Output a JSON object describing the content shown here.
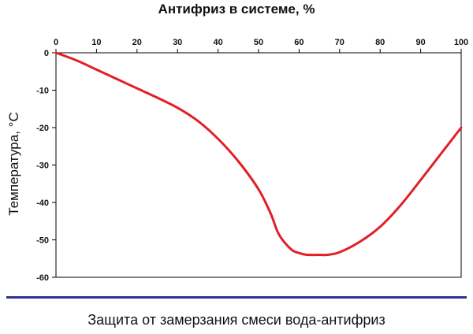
{
  "chart_data": {
    "type": "line",
    "title": "Антифриз в системе, %",
    "ylabel": "Температура, °C",
    "xlabel": "",
    "x_axis_position": "top",
    "xlim": [
      0,
      100
    ],
    "ylim": [
      -60,
      0
    ],
    "x_ticks": [
      "0",
      "10",
      "20",
      "30",
      "40",
      "50",
      "60",
      "70",
      "80",
      "90",
      "100"
    ],
    "y_ticks": [
      "0",
      "-10",
      "-20",
      "-30",
      "-40",
      "-50",
      "-60"
    ],
    "grid": false,
    "series": [
      {
        "color": "#e31e24",
        "x": [
          0,
          5,
          10,
          15,
          20,
          25,
          30,
          35,
          40,
          45,
          50,
          53,
          55,
          58,
          60,
          62,
          65,
          67,
          70,
          75,
          80,
          85,
          90,
          95,
          100
        ],
        "y": [
          0,
          -2,
          -4.5,
          -7,
          -9.5,
          -12,
          -14.7,
          -18.2,
          -23,
          -29,
          -36.5,
          -43,
          -48.5,
          -52.5,
          -53.5,
          -54,
          -54,
          -54,
          -53.3,
          -50.5,
          -46.5,
          -40.8,
          -34,
          -27,
          -20
        ]
      }
    ]
  },
  "caption": "Защита от замерзания смеси вода-антифриз"
}
